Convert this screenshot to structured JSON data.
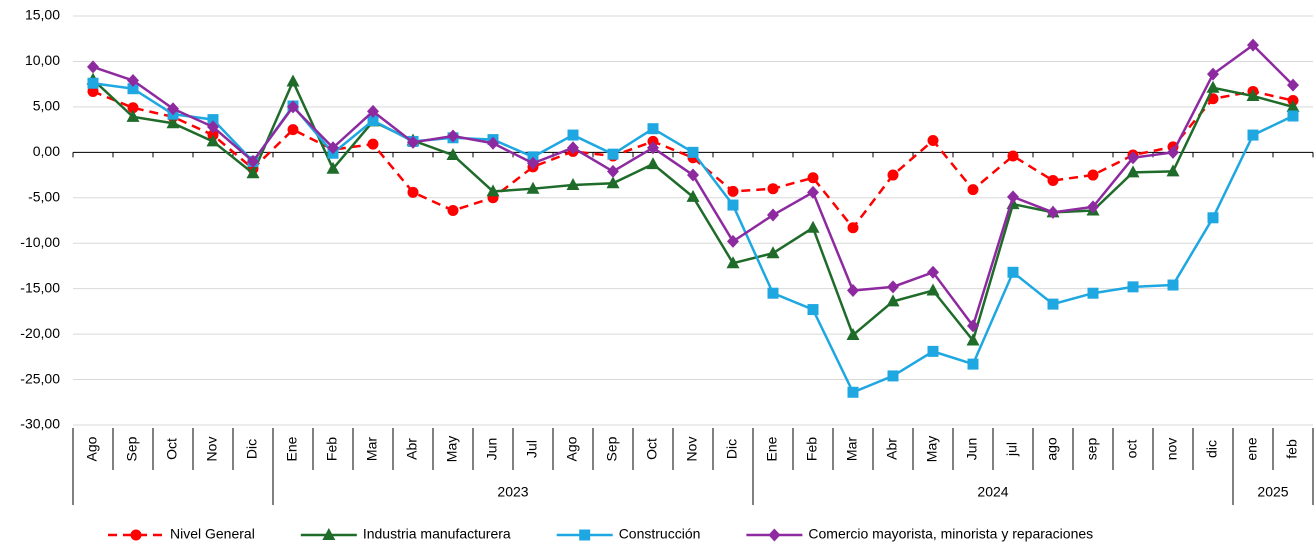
{
  "chart_data": {
    "type": "line",
    "categories": [
      "Ago",
      "Sep",
      "Oct",
      "Nov",
      "Dic",
      "Ene",
      "Feb",
      "Mar",
      "Abr",
      "May",
      "Jun",
      "Jul",
      "Ago",
      "Sep",
      "Oct",
      "Nov",
      "Dic",
      "Ene",
      "Feb",
      "Mar",
      "Abr",
      "May",
      "Jun",
      "jul",
      "ago",
      "sep",
      "oct",
      "nov",
      "dic",
      "ene",
      "feb"
    ],
    "category_groups": [
      {
        "label": null,
        "count": 5
      },
      {
        "label": "2023",
        "count": 12
      },
      {
        "label": "2024",
        "count": 12
      },
      {
        "label": "2025",
        "count": 2
      }
    ],
    "ylim": [
      -30,
      15
    ],
    "yticks": [
      {
        "value": -30,
        "label": "-30,00"
      },
      {
        "value": -25,
        "label": "-25,00"
      },
      {
        "value": -20,
        "label": "-20,00"
      },
      {
        "value": -15,
        "label": "-15,00"
      },
      {
        "value": -10,
        "label": "-10,00"
      },
      {
        "value": -5,
        "label": "-5,00"
      },
      {
        "value": 0,
        "label": "0,00"
      },
      {
        "value": 5,
        "label": "5,00"
      },
      {
        "value": 10,
        "label": "10,00"
      },
      {
        "value": 15,
        "label": "15,00"
      }
    ],
    "grid": true,
    "legend": "bottom",
    "series": [
      {
        "name": "Nivel General",
        "color": "#ff0000",
        "dash": true,
        "marker": "circle",
        "values": [
          6.7,
          4.9,
          3.9,
          1.9,
          -1.8,
          2.5,
          0.3,
          0.9,
          -4.4,
          -6.4,
          -5.0,
          -1.6,
          0.1,
          -0.4,
          1.2,
          -0.6,
          -4.3,
          -4.0,
          -2.8,
          -8.3,
          -2.5,
          1.3,
          -4.1,
          -0.4,
          -3.1,
          -2.5,
          -0.3,
          0.6,
          5.9,
          6.7,
          5.7
        ]
      },
      {
        "name": "Industria manufacturera",
        "color": "#1f6b2a",
        "dash": false,
        "marker": "triangle",
        "values": [
          8.0,
          3.9,
          3.2,
          1.2,
          -2.3,
          7.8,
          -1.8,
          3.4,
          1.3,
          -0.3,
          -4.3,
          -4.0,
          -3.6,
          -3.4,
          -1.3,
          -4.9,
          -12.2,
          -11.1,
          -8.3,
          -20.1,
          -16.4,
          -15.2,
          -20.7,
          -5.7,
          -6.6,
          -6.4,
          -2.2,
          -2.1,
          7.1,
          6.2,
          5.0
        ]
      },
      {
        "name": "Construcción",
        "color": "#1ea7e1",
        "dash": false,
        "marker": "square",
        "values": [
          7.6,
          7.0,
          4.2,
          3.6,
          -1.0,
          5.1,
          -0.1,
          3.5,
          1.2,
          1.6,
          1.4,
          -0.5,
          1.9,
          -0.2,
          2.6,
          0.0,
          -5.8,
          -15.5,
          -17.3,
          -26.4,
          -24.6,
          -21.9,
          -23.3,
          -13.2,
          -16.7,
          -15.5,
          -14.8,
          -14.6,
          -7.2,
          1.9,
          4.0
        ]
      },
      {
        "name": "Comercio mayorista, minorista y reparaciones",
        "color": "#8e2aa0",
        "dash": false,
        "marker": "diamond",
        "values": [
          9.4,
          7.9,
          4.8,
          2.8,
          -1.0,
          5.0,
          0.5,
          4.5,
          1.1,
          1.8,
          1.0,
          -1.2,
          0.5,
          -2.1,
          0.5,
          -2.5,
          -9.8,
          -6.9,
          -4.4,
          -15.2,
          -14.8,
          -13.2,
          -19.1,
          -4.9,
          -6.6,
          -6.0,
          -0.6,
          0.0,
          8.6,
          11.8,
          7.4
        ]
      }
    ]
  }
}
